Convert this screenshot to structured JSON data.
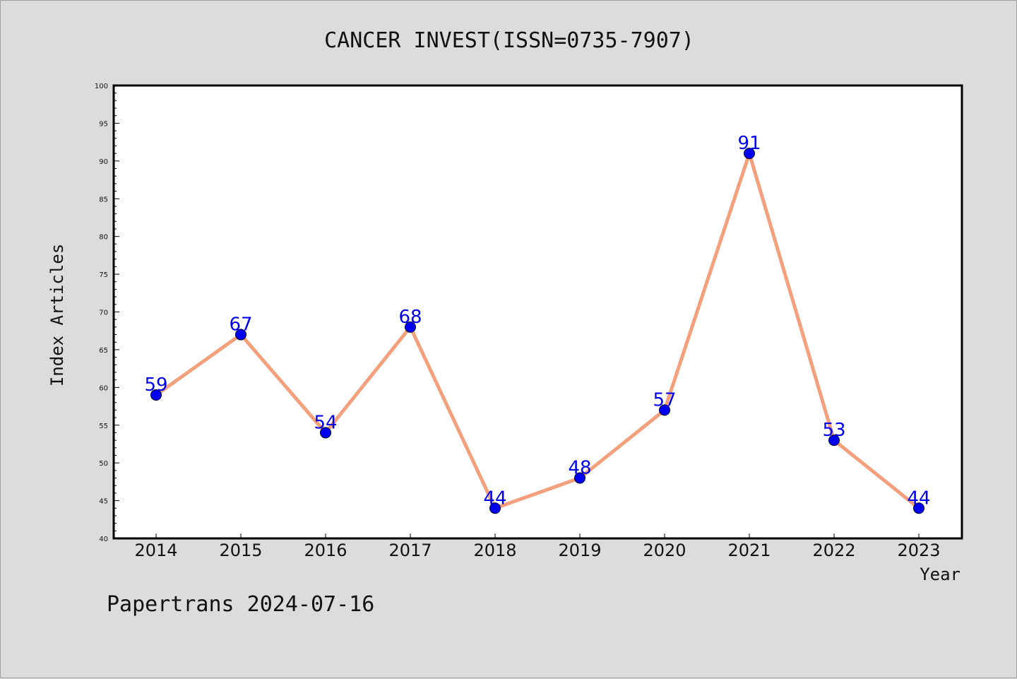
{
  "chart_data": {
    "type": "line",
    "title": "CANCER INVEST(ISSN=0735-7907)",
    "xlabel": "Year",
    "ylabel": "Index Articles",
    "categories": [
      "2014",
      "2015",
      "2016",
      "2017",
      "2018",
      "2019",
      "2020",
      "2021",
      "2022",
      "2023"
    ],
    "series": [
      {
        "values": [
          59,
          67,
          54,
          68,
          44,
          48,
          57,
          91,
          53,
          44
        ]
      }
    ],
    "ylim": [
      40,
      100
    ],
    "yticks": [
      40,
      45,
      50,
      55,
      60,
      65,
      70,
      75,
      80,
      85,
      90,
      95,
      100
    ],
    "grid": false,
    "legend": "none",
    "line_color": "#f4a07c",
    "marker_color": "#0000ee",
    "label_color": "#0000ee"
  },
  "footer": "Papertrans 2024-07-16"
}
